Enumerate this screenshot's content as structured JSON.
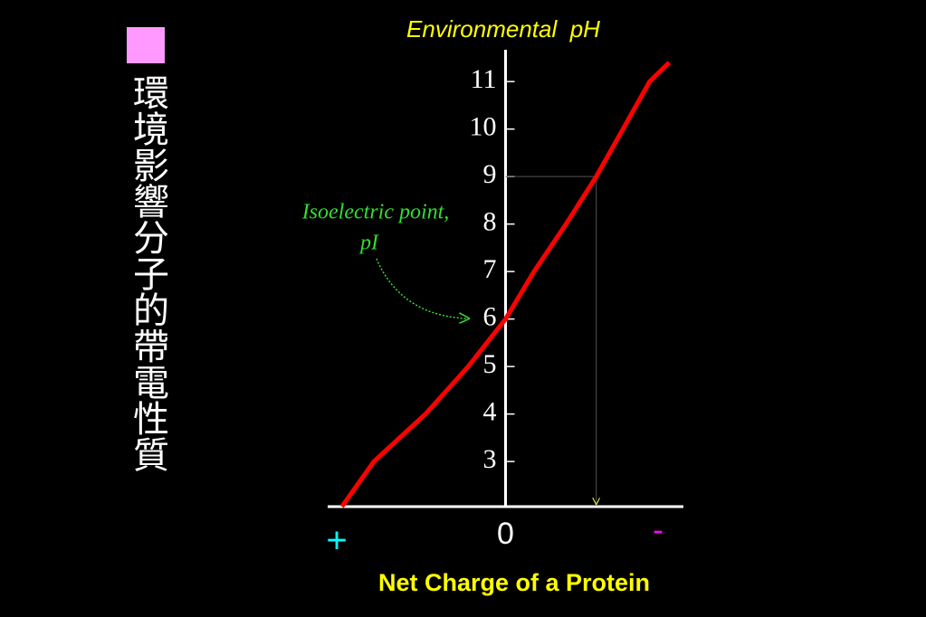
{
  "slide": {
    "heading": "環境影響分子的帶電性質"
  },
  "chart_data": {
    "type": "line",
    "ylabel": "Environmental  pH",
    "xlabel": "Net Charge of a Protein",
    "x_left_label": "+",
    "x_right_label": "-",
    "annotation": [
      "Isoelectric point,",
      "pI"
    ],
    "xlim": [
      1,
      -1
    ],
    "xticks": [
      0
    ],
    "ylim": [
      2.05,
      11.67
    ],
    "yticks": [
      3,
      4,
      5,
      6,
      7,
      8,
      9,
      10,
      11
    ],
    "series": [
      {
        "name": "net charge",
        "color": "#ff0000",
        "x": [
          0.92,
          0.74,
          0.45,
          0.21,
          0,
          -0.16,
          -0.34,
          -0.51,
          -0.66,
          -0.81,
          -0.92
        ],
        "values": [
          2.05,
          3,
          4,
          5,
          6,
          7,
          8,
          9,
          10,
          11,
          11.4
        ]
      }
    ]
  }
}
